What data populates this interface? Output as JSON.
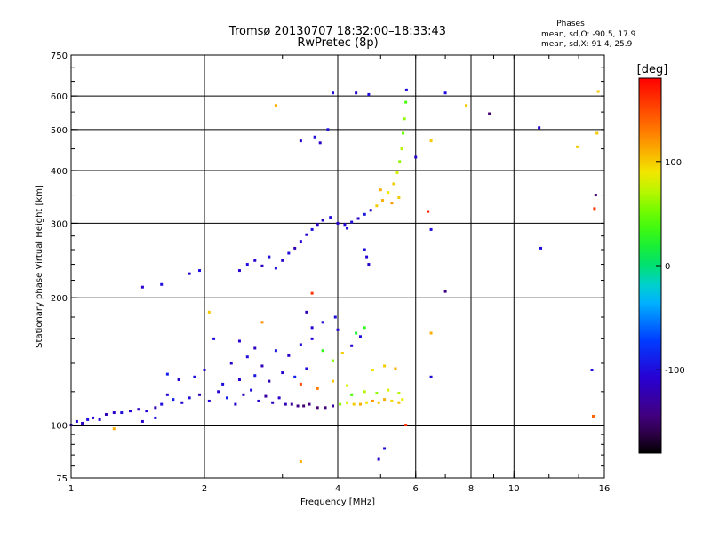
{
  "chart_data": {
    "type": "scatter",
    "title": "Tromsø 20130707 18:32:00–18:33:43",
    "subtitle": "RwPretec (8p)",
    "xlabel": "Frequency [MHz]",
    "ylabel": "Stationary phase Virtual Height [km]",
    "x_scale": "log",
    "y_scale": "log",
    "xlim": [
      1,
      16
    ],
    "ylim": [
      75,
      750
    ],
    "x_ticks": [
      1,
      2,
      4,
      6,
      8,
      10,
      16
    ],
    "y_ticks": [
      75,
      100,
      200,
      300,
      400,
      500,
      600,
      750
    ],
    "x_grid": [
      2,
      4,
      6,
      8,
      10
    ],
    "y_grid": [
      100,
      200,
      300,
      400,
      500,
      600
    ],
    "stats": {
      "heading": "Phases",
      "line_o": "mean, sd,O: -90.5, 17.9",
      "line_x": "mean, sd,X:  91.4, 25.9"
    },
    "colorbar": {
      "label": "[deg]",
      "range": [
        -180,
        180
      ],
      "ticks": [
        100,
        0,
        -100
      ],
      "colormap": "rainbow"
    },
    "points": [
      {
        "x": 1.0,
        "y": 100,
        "c": -120
      },
      {
        "x": 1.03,
        "y": 102,
        "c": -110
      },
      {
        "x": 1.06,
        "y": 101,
        "c": -115
      },
      {
        "x": 1.09,
        "y": 103,
        "c": -100
      },
      {
        "x": 1.12,
        "y": 104,
        "c": -110
      },
      {
        "x": 1.16,
        "y": 103,
        "c": -105
      },
      {
        "x": 1.2,
        "y": 106,
        "c": -120
      },
      {
        "x": 1.25,
        "y": 107,
        "c": -110
      },
      {
        "x": 1.3,
        "y": 107,
        "c": -100
      },
      {
        "x": 1.36,
        "y": 108,
        "c": -110
      },
      {
        "x": 1.42,
        "y": 109,
        "c": -115
      },
      {
        "x": 1.48,
        "y": 108,
        "c": -105
      },
      {
        "x": 1.55,
        "y": 110,
        "c": -120
      },
      {
        "x": 1.6,
        "y": 112,
        "c": -100
      },
      {
        "x": 1.65,
        "y": 118,
        "c": -110
      },
      {
        "x": 1.7,
        "y": 115,
        "c": -90
      },
      {
        "x": 1.78,
        "y": 113,
        "c": -110
      },
      {
        "x": 1.85,
        "y": 116,
        "c": -100
      },
      {
        "x": 1.95,
        "y": 118,
        "c": -120
      },
      {
        "x": 2.05,
        "y": 114,
        "c": -105
      },
      {
        "x": 2.15,
        "y": 120,
        "c": -110
      },
      {
        "x": 2.25,
        "y": 116,
        "c": -90
      },
      {
        "x": 2.35,
        "y": 112,
        "c": -110
      },
      {
        "x": 2.45,
        "y": 118,
        "c": -120
      },
      {
        "x": 2.55,
        "y": 121,
        "c": -100
      },
      {
        "x": 2.65,
        "y": 114,
        "c": -110
      },
      {
        "x": 2.75,
        "y": 117,
        "c": -130
      },
      {
        "x": 2.85,
        "y": 113,
        "c": -115
      },
      {
        "x": 2.95,
        "y": 116,
        "c": -110
      },
      {
        "x": 3.05,
        "y": 112,
        "c": -120
      },
      {
        "x": 3.15,
        "y": 112,
        "c": -130
      },
      {
        "x": 3.25,
        "y": 111,
        "c": -140
      },
      {
        "x": 3.35,
        "y": 111,
        "c": -150
      },
      {
        "x": 3.45,
        "y": 112,
        "c": -140
      },
      {
        "x": 3.6,
        "y": 110,
        "c": -150
      },
      {
        "x": 3.75,
        "y": 110,
        "c": -145
      },
      {
        "x": 3.9,
        "y": 111,
        "c": -130
      },
      {
        "x": 4.05,
        "y": 112,
        "c": 60
      },
      {
        "x": 4.2,
        "y": 113,
        "c": 80
      },
      {
        "x": 4.35,
        "y": 112,
        "c": 100
      },
      {
        "x": 4.5,
        "y": 112,
        "c": 110
      },
      {
        "x": 4.65,
        "y": 113,
        "c": 90
      },
      {
        "x": 4.8,
        "y": 114,
        "c": 120
      },
      {
        "x": 4.95,
        "y": 113,
        "c": 100
      },
      {
        "x": 5.1,
        "y": 115,
        "c": 110
      },
      {
        "x": 5.3,
        "y": 114,
        "c": 95
      },
      {
        "x": 5.5,
        "y": 113,
        "c": 105
      },
      {
        "x": 5.6,
        "y": 115,
        "c": 85
      },
      {
        "x": 4.3,
        "y": 118,
        "c": 40
      },
      {
        "x": 4.6,
        "y": 120,
        "c": 70
      },
      {
        "x": 4.9,
        "y": 119,
        "c": 60
      },
      {
        "x": 5.2,
        "y": 121,
        "c": 80
      },
      {
        "x": 5.5,
        "y": 119,
        "c": 70
      },
      {
        "x": 3.3,
        "y": 125,
        "c": 150
      },
      {
        "x": 3.6,
        "y": 122,
        "c": 130
      },
      {
        "x": 3.9,
        "y": 127,
        "c": 100
      },
      {
        "x": 4.2,
        "y": 124,
        "c": 80
      },
      {
        "x": 2.2,
        "y": 125,
        "c": -100
      },
      {
        "x": 2.4,
        "y": 128,
        "c": -110
      },
      {
        "x": 2.6,
        "y": 131,
        "c": -95
      },
      {
        "x": 2.8,
        "y": 127,
        "c": -120
      },
      {
        "x": 3.0,
        "y": 133,
        "c": -105
      },
      {
        "x": 3.2,
        "y": 130,
        "c": -90
      },
      {
        "x": 3.4,
        "y": 136,
        "c": -100
      },
      {
        "x": 2.3,
        "y": 140,
        "c": -110
      },
      {
        "x": 2.5,
        "y": 145,
        "c": -100
      },
      {
        "x": 2.7,
        "y": 138,
        "c": -120
      },
      {
        "x": 2.9,
        "y": 150,
        "c": -95
      },
      {
        "x": 3.1,
        "y": 146,
        "c": -110
      },
      {
        "x": 3.3,
        "y": 155,
        "c": -100
      },
      {
        "x": 3.5,
        "y": 160,
        "c": -105
      },
      {
        "x": 3.7,
        "y": 150,
        "c": 30
      },
      {
        "x": 3.9,
        "y": 142,
        "c": 60
      },
      {
        "x": 4.1,
        "y": 148,
        "c": 100
      },
      {
        "x": 4.3,
        "y": 154,
        "c": -110
      },
      {
        "x": 4.5,
        "y": 162,
        "c": -100
      },
      {
        "x": 4.8,
        "y": 135,
        "c": 90
      },
      {
        "x": 5.1,
        "y": 138,
        "c": 100
      },
      {
        "x": 5.4,
        "y": 136,
        "c": 110
      },
      {
        "x": 3.5,
        "y": 170,
        "c": -110
      },
      {
        "x": 3.7,
        "y": 175,
        "c": -100
      },
      {
        "x": 4.0,
        "y": 168,
        "c": -105
      },
      {
        "x": 3.4,
        "y": 185,
        "c": -120
      },
      {
        "x": 2.1,
        "y": 160,
        "c": -100
      },
      {
        "x": 2.4,
        "y": 158,
        "c": -110
      },
      {
        "x": 2.6,
        "y": 152,
        "c": -115
      },
      {
        "x": 1.9,
        "y": 130,
        "c": -100
      },
      {
        "x": 1.75,
        "y": 128,
        "c": -110
      },
      {
        "x": 1.65,
        "y": 132,
        "c": -90
      },
      {
        "x": 2.0,
        "y": 135,
        "c": -105
      },
      {
        "x": 4.6,
        "y": 170,
        "c": 30
      },
      {
        "x": 4.4,
        "y": 165,
        "c": 20
      },
      {
        "x": 3.95,
        "y": 180,
        "c": -100
      },
      {
        "x": 1.25,
        "y": 98,
        "c": 110
      },
      {
        "x": 1.45,
        "y": 102,
        "c": -110
      },
      {
        "x": 1.55,
        "y": 104,
        "c": -100
      },
      {
        "x": 2.9,
        "y": 235,
        "c": -100
      },
      {
        "x": 3.0,
        "y": 245,
        "c": -110
      },
      {
        "x": 3.1,
        "y": 255,
        "c": -100
      },
      {
        "x": 3.2,
        "y": 262,
        "c": -120
      },
      {
        "x": 3.3,
        "y": 272,
        "c": -105
      },
      {
        "x": 3.4,
        "y": 282,
        "c": -110
      },
      {
        "x": 3.5,
        "y": 290,
        "c": -100
      },
      {
        "x": 3.6,
        "y": 298,
        "c": -115
      },
      {
        "x": 3.7,
        "y": 305,
        "c": -110
      },
      {
        "x": 3.85,
        "y": 310,
        "c": -100
      },
      {
        "x": 4.0,
        "y": 300,
        "c": -110
      },
      {
        "x": 4.15,
        "y": 298,
        "c": -105
      },
      {
        "x": 4.3,
        "y": 302,
        "c": -100
      },
      {
        "x": 4.45,
        "y": 308,
        "c": -110
      },
      {
        "x": 4.6,
        "y": 315,
        "c": -95
      },
      {
        "x": 4.75,
        "y": 322,
        "c": -110
      },
      {
        "x": 4.9,
        "y": 330,
        "c": 100
      },
      {
        "x": 5.05,
        "y": 340,
        "c": 110
      },
      {
        "x": 5.2,
        "y": 355,
        "c": 90
      },
      {
        "x": 5.35,
        "y": 372,
        "c": 100
      },
      {
        "x": 5.45,
        "y": 395,
        "c": 80
      },
      {
        "x": 5.52,
        "y": 420,
        "c": 60
      },
      {
        "x": 5.58,
        "y": 450,
        "c": 70
      },
      {
        "x": 5.62,
        "y": 490,
        "c": 50
      },
      {
        "x": 5.66,
        "y": 530,
        "c": 60
      },
      {
        "x": 5.7,
        "y": 580,
        "c": 40
      },
      {
        "x": 5.72,
        "y": 620,
        "c": -100
      },
      {
        "x": 2.5,
        "y": 240,
        "c": -100
      },
      {
        "x": 2.6,
        "y": 245,
        "c": -110
      },
      {
        "x": 2.7,
        "y": 238,
        "c": -120
      },
      {
        "x": 2.8,
        "y": 250,
        "c": -100
      },
      {
        "x": 2.4,
        "y": 232,
        "c": -110
      },
      {
        "x": 5.0,
        "y": 360,
        "c": 110
      },
      {
        "x": 5.5,
        "y": 345,
        "c": 100
      },
      {
        "x": 5.3,
        "y": 335,
        "c": 120
      },
      {
        "x": 4.2,
        "y": 292,
        "c": -100
      },
      {
        "x": 1.85,
        "y": 228,
        "c": -110
      },
      {
        "x": 1.95,
        "y": 232,
        "c": -100
      },
      {
        "x": 1.45,
        "y": 212,
        "c": -110
      },
      {
        "x": 1.6,
        "y": 215,
        "c": -100
      },
      {
        "x": 3.55,
        "y": 480,
        "c": -100
      },
      {
        "x": 3.65,
        "y": 465,
        "c": -110
      },
      {
        "x": 3.8,
        "y": 500,
        "c": -100
      },
      {
        "x": 4.4,
        "y": 610,
        "c": -110
      },
      {
        "x": 4.7,
        "y": 605,
        "c": -100
      },
      {
        "x": 3.3,
        "y": 470,
        "c": -110
      },
      {
        "x": 3.9,
        "y": 610,
        "c": -100
      },
      {
        "x": 4.6,
        "y": 260,
        "c": -100
      },
      {
        "x": 4.65,
        "y": 250,
        "c": -105
      },
      {
        "x": 4.7,
        "y": 240,
        "c": -110
      },
      {
        "x": 7.0,
        "y": 610,
        "c": -100
      },
      {
        "x": 8.8,
        "y": 545,
        "c": -150
      },
      {
        "x": 11.4,
        "y": 505,
        "c": -110
      },
      {
        "x": 6.5,
        "y": 290,
        "c": -100
      },
      {
        "x": 7.0,
        "y": 207,
        "c": -140
      },
      {
        "x": 6.5,
        "y": 130,
        "c": -100
      },
      {
        "x": 6.4,
        "y": 320,
        "c": 170
      },
      {
        "x": 15.3,
        "y": 350,
        "c": -150
      },
      {
        "x": 15.2,
        "y": 325,
        "c": 160
      },
      {
        "x": 11.5,
        "y": 262,
        "c": -100
      },
      {
        "x": 15.0,
        "y": 135,
        "c": -100
      },
      {
        "x": 15.1,
        "y": 105,
        "c": 140
      },
      {
        "x": 5.1,
        "y": 88,
        "c": -100
      },
      {
        "x": 4.95,
        "y": 83,
        "c": -110
      },
      {
        "x": 3.3,
        "y": 82,
        "c": 110
      },
      {
        "x": 2.9,
        "y": 570,
        "c": 110
      },
      {
        "x": 6.5,
        "y": 470,
        "c": 100
      },
      {
        "x": 13.9,
        "y": 455,
        "c": 100
      },
      {
        "x": 7.8,
        "y": 570,
        "c": 100
      },
      {
        "x": 6.0,
        "y": 430,
        "c": -110
      },
      {
        "x": 3.5,
        "y": 205,
        "c": 160
      },
      {
        "x": 2.05,
        "y": 185,
        "c": 100
      },
      {
        "x": 2.7,
        "y": 175,
        "c": 120
      },
      {
        "x": 6.5,
        "y": 165,
        "c": 110
      },
      {
        "x": 15.5,
        "y": 615,
        "c": 100
      },
      {
        "x": 15.4,
        "y": 490,
        "c": 100
      },
      {
        "x": 5.7,
        "y": 100,
        "c": 160
      }
    ]
  }
}
